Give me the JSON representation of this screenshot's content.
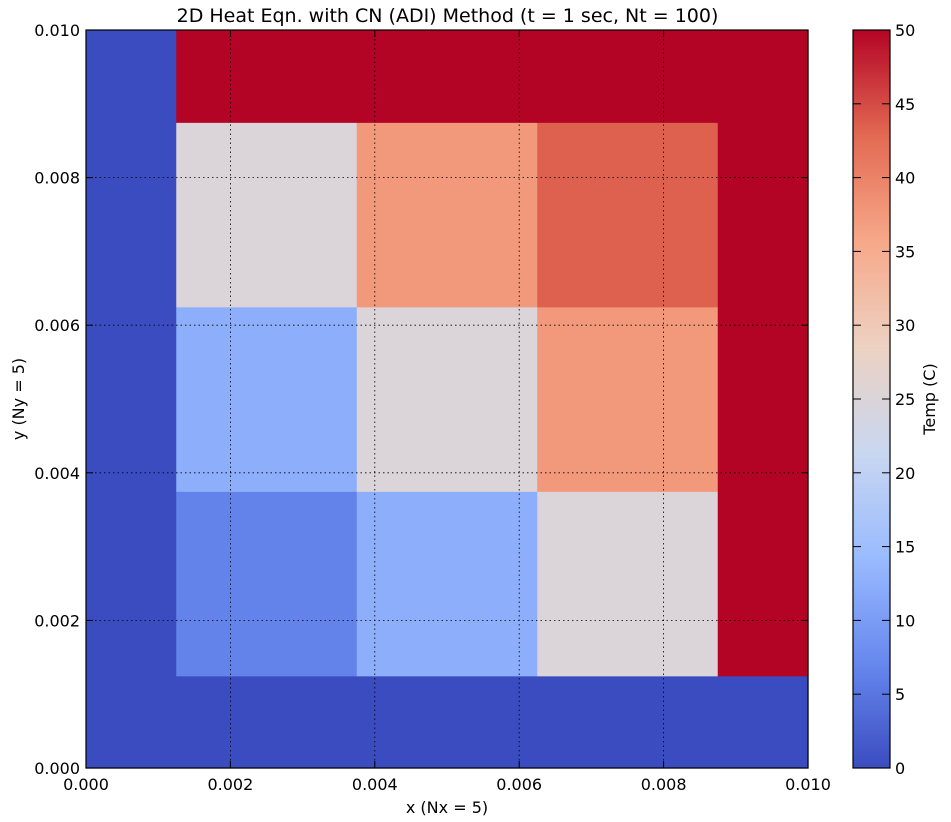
{
  "chart_data": {
    "type": "heatmap",
    "title": "2D Heat Eqn. with CN (ADI) Method (t = 1 sec, Nt = 100)",
    "xlabel": "x (Nx = 5)",
    "ylabel": "y (Ny = 5)",
    "xlim": [
      0.0,
      0.01
    ],
    "ylim": [
      0.0,
      0.01
    ],
    "x_ticks": [
      "0.000",
      "0.002",
      "0.004",
      "0.006",
      "0.008",
      "0.010"
    ],
    "y_ticks": [
      "0.000",
      "0.002",
      "0.004",
      "0.006",
      "0.008",
      "0.010"
    ],
    "grid": true,
    "x_edges": [
      0.0,
      0.00125,
      0.00375,
      0.00625,
      0.00875,
      0.01
    ],
    "y_edges": [
      0.0,
      0.00125,
      0.00375,
      0.00625,
      0.00875,
      0.01
    ],
    "values": [
      [
        0,
        0,
        0,
        0,
        0
      ],
      [
        0,
        6.5,
        12.5,
        25,
        50
      ],
      [
        0,
        12.5,
        25,
        37.5,
        50
      ],
      [
        0,
        25,
        37.5,
        43.5,
        50
      ],
      [
        0,
        50,
        50,
        50,
        50
      ]
    ],
    "colorbar": {
      "label": "Temp (C)",
      "min": 0,
      "max": 50,
      "ticks": [
        "0",
        "5",
        "10",
        "15",
        "20",
        "25",
        "30",
        "35",
        "40",
        "45",
        "50"
      ]
    },
    "colormap": [
      "#3b4cc0",
      "#6788ee",
      "#9abbff",
      "#c9d7f0",
      "#edd1c2",
      "#f7a889",
      "#e26952",
      "#b40426"
    ]
  }
}
